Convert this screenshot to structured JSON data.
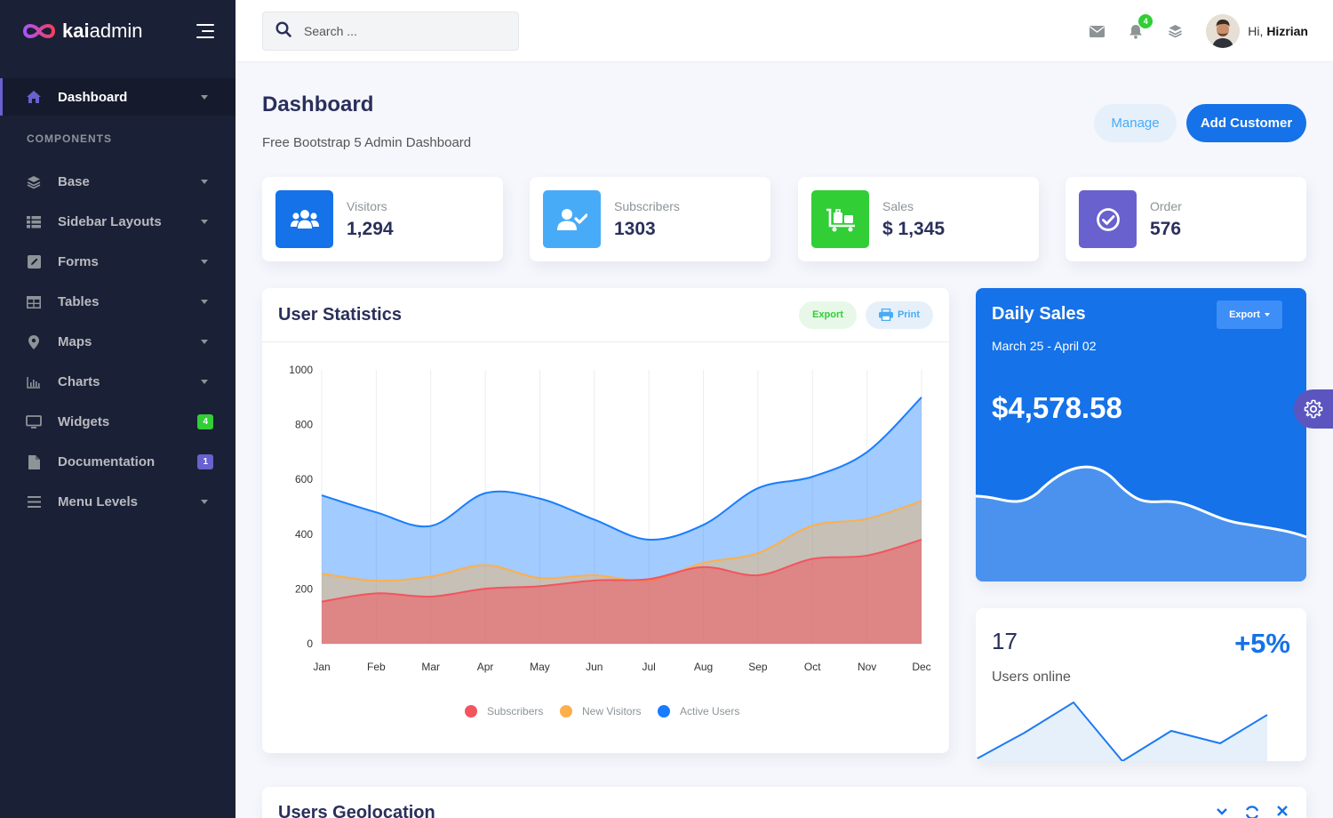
{
  "brand": {
    "name_bold": "kai",
    "name_light": "admin"
  },
  "search": {
    "placeholder": "Search ..."
  },
  "header": {
    "notifications_count": "4",
    "greeting": "Hi,",
    "username": "Hizrian"
  },
  "sidebar": {
    "active": {
      "label": "Dashboard"
    },
    "section": "COMPONENTS",
    "items": [
      {
        "label": "Base",
        "icon": "layers-icon"
      },
      {
        "label": "Sidebar Layouts",
        "icon": "th-list-icon"
      },
      {
        "label": "Forms",
        "icon": "pen-square-icon"
      },
      {
        "label": "Tables",
        "icon": "table-icon"
      },
      {
        "label": "Maps",
        "icon": "map-marker-icon"
      },
      {
        "label": "Charts",
        "icon": "bar-chart-icon"
      },
      {
        "label": "Widgets",
        "icon": "desktop-icon",
        "badge": "4",
        "badge_color": "#31ce36"
      },
      {
        "label": "Documentation",
        "icon": "file-icon",
        "badge": "1",
        "badge_color": "#6861ce"
      },
      {
        "label": "Menu Levels",
        "icon": "bars-icon"
      }
    ]
  },
  "page": {
    "title": "Dashboard",
    "subtitle": "Free Bootstrap 5 Admin Dashboard",
    "manage": "Manage",
    "add_customer": "Add Customer"
  },
  "stats": [
    {
      "label": "Visitors",
      "value": "1,294",
      "color": "#1572e8",
      "icon": "users-icon"
    },
    {
      "label": "Subscribers",
      "value": "1303",
      "color": "#48abf7",
      "icon": "user-check-icon"
    },
    {
      "label": "Sales",
      "value": "$ 1,345",
      "color": "#31ce36",
      "icon": "luggage-cart-icon"
    },
    {
      "label": "Order",
      "value": "576",
      "color": "#6861ce",
      "icon": "check-circle-icon"
    }
  ],
  "user_stats": {
    "title": "User Statistics",
    "export": "Export",
    "print": "Print"
  },
  "chart_data": {
    "type": "area",
    "categories": [
      "Jan",
      "Feb",
      "Mar",
      "Apr",
      "May",
      "Jun",
      "Jul",
      "Aug",
      "Sep",
      "Oct",
      "Nov",
      "Dec"
    ],
    "ylim": [
      0,
      1000
    ],
    "yticks": [
      0,
      200,
      400,
      600,
      800,
      1000
    ],
    "series": [
      {
        "name": "Subscribers",
        "color": "#f3545d",
        "values": [
          154,
          184,
          172,
          201,
          210,
          231,
          236,
          280,
          250,
          310,
          322,
          380
        ]
      },
      {
        "name": "New Visitors",
        "color": "#fdaf4b",
        "values": [
          256,
          230,
          245,
          287,
          240,
          250,
          230,
          295,
          331,
          431,
          456,
          521
        ]
      },
      {
        "name": "Active Users",
        "color": "#177dff",
        "values": [
          542,
          480,
          430,
          550,
          530,
          453,
          380,
          434,
          568,
          610,
          700,
          900
        ]
      }
    ]
  },
  "daily_sales": {
    "title": "Daily Sales",
    "range": "March 25 - April 02",
    "amount": "$4,578.58",
    "export": "Export"
  },
  "online": {
    "count": "17",
    "label": "Users online",
    "pct": "+5%"
  },
  "geo": {
    "title": "Users Geolocation"
  }
}
